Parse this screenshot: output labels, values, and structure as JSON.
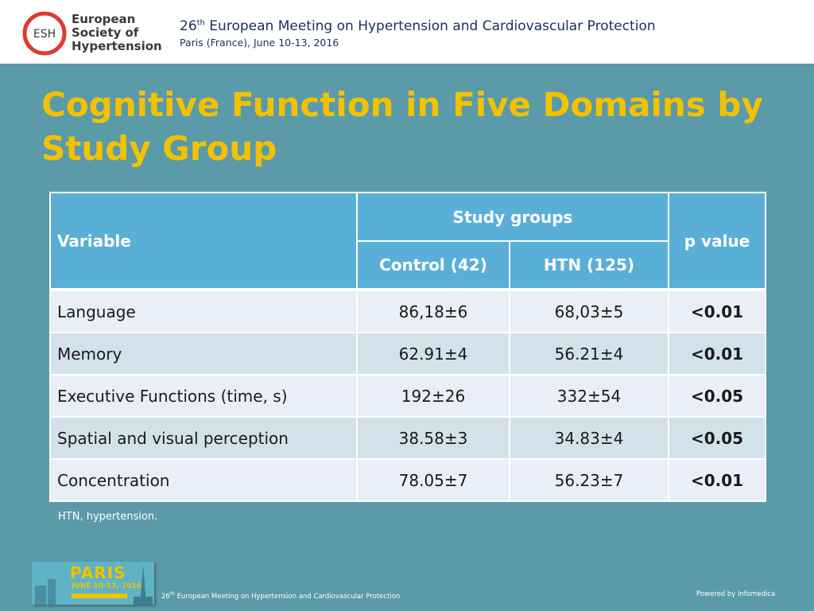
{
  "header": {
    "org_name_line1": "European",
    "org_name_line2": "Society of",
    "org_name_line3": "Hypertension",
    "logo_abbrev": "ESH",
    "meeting_ordinal_num": "26",
    "meeting_ordinal_suffix": "th",
    "meeting_title": " European Meeting on Hypertension and Cardiovascular Protection",
    "location_date": "Paris (France), June 10-13, 2016"
  },
  "slide": {
    "title": "Cognitive Function in Five Domains by Study Group"
  },
  "table": {
    "col_variable": "Variable",
    "col_study_groups": "Study groups",
    "col_control": "Control (42)",
    "col_htn": "HTN (125)",
    "col_pvalue": "p value",
    "rows": [
      {
        "variable": "Language",
        "control": "86,18±6",
        "htn": "68,03±5",
        "p": "<0.01"
      },
      {
        "variable": "Memory",
        "control": "62.91±4",
        "htn": "56.21±4",
        "p": "<0.01"
      },
      {
        "variable": "Executive Functions (time, s)",
        "control": "192±26",
        "htn": "332±54",
        "p": "<0.05"
      },
      {
        "variable": "Spatial and visual perception",
        "control": "38.58±3",
        "htn": "34.83±4",
        "p": "<0.05"
      },
      {
        "variable": "Concentration",
        "control": "78.05±7",
        "htn": "56.23±7",
        "p": "<0.01"
      }
    ]
  },
  "footnote": "HTN, hypertension.",
  "footer": {
    "paris_word": "PARIS",
    "paris_dates": "JUNE 10-13, 2016",
    "meeting_ordinal_num": "26",
    "meeting_ordinal_suffix": "th",
    "meeting_title": " European Meeting on Hypertension and Cardiovascular Protection",
    "powered_by": "Powered by Infomedica"
  },
  "colors": {
    "background": "#5b9aa9",
    "title": "#f2c200",
    "table_header": "#5aafd6",
    "logo_red": "#e03a2e"
  }
}
